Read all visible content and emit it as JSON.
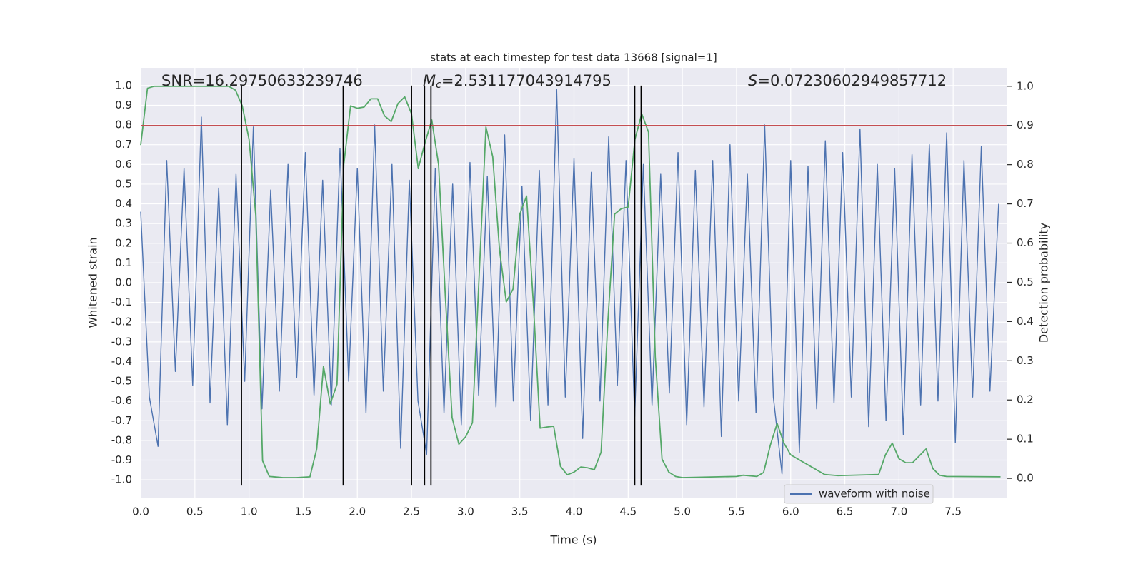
{
  "chart_data": {
    "type": "line",
    "title": "stats at each timestep for test data 13668 [signal=1]",
    "xlabel": "Time (s)",
    "ylabel": "Whitened strain",
    "y2label": "Detection probability",
    "annotations": [
      {
        "text": "SNR=16.29750633239746"
      },
      {
        "symbol": "M",
        "subscript": "c",
        "text": "=2.531177043914795"
      },
      {
        "symbol": "S",
        "text": "=0.07230602949857712"
      }
    ],
    "xlim": [
      0,
      8.0
    ],
    "ylim": [
      -1.09,
      1.09
    ],
    "y2lim": [
      -0.049,
      1.047
    ],
    "xticks": [
      {
        "value": 0,
        "label": "0.0"
      },
      0.5,
      {
        "value": 1,
        "label": "1.0"
      },
      1.5,
      {
        "value": 2,
        "label": "2.0"
      },
      2.5,
      {
        "value": 3,
        "label": "3.0"
      },
      3.5,
      {
        "value": 4,
        "label": "4.0"
      },
      4.5,
      {
        "value": 5,
        "label": "5.0"
      },
      5.5,
      {
        "value": 6,
        "label": "6.0"
      },
      6.5,
      {
        "value": 7,
        "label": "7.0"
      },
      7.5
    ],
    "yticks": [
      {
        "value": -1,
        "label": "-1.0"
      },
      -0.9,
      -0.8,
      -0.7,
      -0.6,
      -0.5,
      -0.4,
      -0.3,
      -0.2,
      -0.1,
      {
        "value": 0,
        "label": "0.0"
      },
      0.1,
      0.2,
      0.3,
      0.4,
      0.5,
      0.6,
      0.7,
      0.8,
      0.9,
      {
        "value": 1,
        "label": "1.0"
      }
    ],
    "y2ticks": [
      {
        "value": 0,
        "label": "0.0"
      },
      0.1,
      0.2,
      0.3,
      0.4,
      0.5,
      0.6,
      0.7,
      0.8,
      0.9,
      {
        "value": 1,
        "label": "1.0"
      }
    ],
    "grid": true,
    "legend": "lower right",
    "series": [
      {
        "name": "waveform with noise",
        "color": "#4c72b0",
        "x": [
          0,
          0.08,
          0.16,
          0.24,
          0.32,
          0.4,
          0.48,
          0.56,
          0.64,
          0.72,
          0.8,
          0.88,
          0.96,
          1.04,
          1.12,
          1.2,
          1.28,
          1.36,
          1.44,
          1.52,
          1.6,
          1.68,
          1.76,
          1.84,
          1.92,
          2.0,
          2.08,
          2.16,
          2.24,
          2.32,
          2.4,
          2.48,
          2.56,
          2.64,
          2.72,
          2.8,
          2.88,
          2.96,
          3.04,
          3.12,
          3.2,
          3.28,
          3.36,
          3.44,
          3.52,
          3.6,
          3.68,
          3.76,
          3.84,
          3.92,
          4.0,
          4.08,
          4.16,
          4.24,
          4.32,
          4.4,
          4.48,
          4.56,
          4.64,
          4.72,
          4.8,
          4.88,
          4.96,
          5.04,
          5.12,
          5.2,
          5.28,
          5.36,
          5.44,
          5.52,
          5.6,
          5.68,
          5.76,
          5.84,
          5.92,
          6.0,
          6.08,
          6.16,
          6.24,
          6.32,
          6.4,
          6.48,
          6.56,
          6.64,
          6.72,
          6.8,
          6.88,
          6.96,
          7.04,
          7.12,
          7.2,
          7.28,
          7.36,
          7.44,
          7.52,
          7.6,
          7.68,
          7.76,
          7.84,
          7.92
        ],
        "values": [
          0.36,
          -0.58,
          -0.83,
          0.62,
          -0.45,
          0.58,
          -0.52,
          0.84,
          -0.61,
          0.48,
          -0.72,
          0.55,
          -0.5,
          0.79,
          -0.64,
          0.47,
          -0.55,
          0.6,
          -0.48,
          0.66,
          -0.57,
          0.52,
          -0.62,
          0.68,
          -0.5,
          0.58,
          -0.66,
          0.8,
          -0.55,
          0.6,
          -0.84,
          0.52,
          -0.6,
          -0.87,
          0.58,
          -0.66,
          0.5,
          -0.72,
          0.61,
          -0.57,
          0.54,
          -0.63,
          0.75,
          -0.6,
          0.49,
          -0.7,
          0.57,
          -0.62,
          0.98,
          -0.58,
          0.63,
          -0.79,
          0.56,
          -0.6,
          0.74,
          -0.52,
          0.62,
          -0.68,
          0.6,
          -0.62,
          0.55,
          -0.56,
          0.66,
          -0.72,
          0.57,
          -0.63,
          0.62,
          -0.78,
          0.7,
          -0.6,
          0.55,
          -0.66,
          0.8,
          -0.58,
          -0.97,
          0.62,
          -0.86,
          0.59,
          -0.64,
          0.72,
          -0.61,
          0.66,
          -0.58,
          0.78,
          -0.73,
          0.6,
          -0.7,
          0.58,
          -0.77,
          0.65,
          -0.62,
          0.7,
          -0.6,
          0.76,
          -0.81,
          0.62,
          -0.58,
          0.69,
          -0.55,
          0.4
        ]
      },
      {
        "color": "#55a868",
        "axis": "y2",
        "x": [
          0,
          0.0625,
          0.125,
          0.8125,
          0.875,
          0.9375,
          1.0,
          1.0625,
          1.125,
          1.1875,
          1.3125,
          1.4375,
          1.5625,
          1.625,
          1.6875,
          1.75,
          1.8125,
          1.875,
          1.9375,
          2.0,
          2.0625,
          2.125,
          2.1875,
          2.25,
          2.3125,
          2.375,
          2.4375,
          2.5,
          2.5625,
          2.625,
          2.6875,
          2.75,
          2.8125,
          2.875,
          2.9375,
          3.0,
          3.0625,
          3.1875,
          3.25,
          3.3125,
          3.375,
          3.4375,
          3.5,
          3.5625,
          3.625,
          3.6875,
          3.75,
          3.8125,
          3.875,
          3.9375,
          4.0,
          4.0625,
          4.125,
          4.1875,
          4.25,
          4.3125,
          4.375,
          4.4375,
          4.5,
          4.5625,
          4.625,
          4.6875,
          4.75,
          4.8125,
          4.875,
          4.9375,
          5.0,
          5.5,
          5.5625,
          5.6875,
          5.75,
          5.8125,
          5.875,
          5.9375,
          6.0,
          6.125,
          6.25,
          6.3125,
          6.4375,
          6.8125,
          6.875,
          6.9375,
          7.0,
          7.0625,
          7.125,
          7.25,
          7.3125,
          7.375,
          7.4375,
          7.9375
        ],
        "values": [
          0.85,
          0.995,
          1.0,
          1.0,
          0.99,
          0.95,
          0.865,
          0.67,
          0.045,
          0.005,
          0.002,
          0.002,
          0.004,
          0.075,
          0.286,
          0.19,
          0.24,
          0.8,
          0.95,
          0.944,
          0.947,
          0.968,
          0.968,
          0.925,
          0.91,
          0.956,
          0.973,
          0.93,
          0.79,
          0.856,
          0.914,
          0.8,
          0.465,
          0.155,
          0.087,
          0.106,
          0.142,
          0.896,
          0.82,
          0.583,
          0.45,
          0.483,
          0.674,
          0.72,
          0.446,
          0.128,
          0.131,
          0.133,
          0.031,
          0.009,
          0.016,
          0.029,
          0.027,
          0.022,
          0.067,
          0.4,
          0.674,
          0.688,
          0.692,
          0.865,
          0.93,
          0.883,
          0.31,
          0.049,
          0.016,
          0.005,
          0.002,
          0.005,
          0.008,
          0.005,
          0.015,
          0.085,
          0.14,
          0.09,
          0.06,
          0.04,
          0.02,
          0.01,
          0.007,
          0.01,
          0.06,
          0.09,
          0.05,
          0.04,
          0.04,
          0.075,
          0.025,
          0.008,
          0.005,
          0.004
        ]
      }
    ],
    "threshold": {
      "value": 0.9,
      "axis": "y2",
      "color": "#c44e52"
    },
    "vlines": {
      "x": [
        0.93,
        1.87,
        2.5,
        2.62,
        2.68,
        4.56,
        4.62
      ],
      "color": "#000000"
    }
  }
}
